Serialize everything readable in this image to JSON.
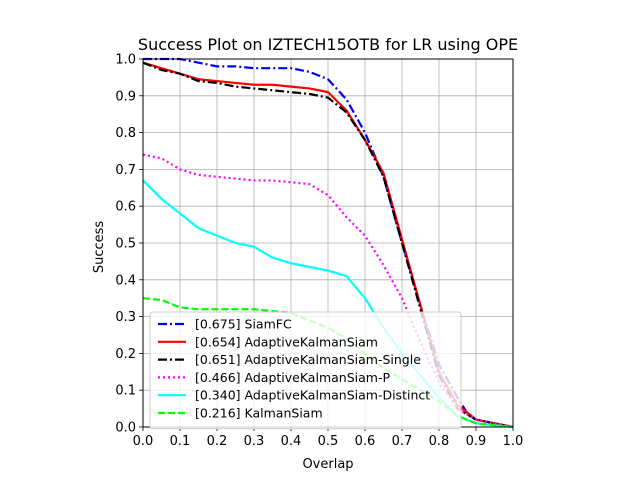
{
  "chart_data": {
    "type": "line",
    "title": "Success Plot on IZTECH15OTB for LR using OPE",
    "xlabel": "Overlap",
    "ylabel": "Success",
    "xlim": [
      0,
      1
    ],
    "ylim": [
      0,
      1
    ],
    "x_ticks": [
      "0.0",
      "0.1",
      "0.2",
      "0.3",
      "0.4",
      "0.5",
      "0.6",
      "0.7",
      "0.8",
      "0.9",
      "1.0"
    ],
    "y_ticks": [
      "0.0",
      "0.1",
      "0.2",
      "0.3",
      "0.4",
      "0.5",
      "0.6",
      "0.7",
      "0.8",
      "0.9",
      "1.0"
    ],
    "grid": true,
    "legend_position": "lower-left",
    "series": [
      {
        "name": "[0.675] SiamFC",
        "color": "#0000ff",
        "style": "dashdot",
        "x": [
          0.0,
          0.05,
          0.1,
          0.15,
          0.2,
          0.25,
          0.3,
          0.35,
          0.4,
          0.45,
          0.5,
          0.55,
          0.6,
          0.65,
          0.7,
          0.75,
          0.8,
          0.85,
          0.875,
          0.9,
          0.95,
          1.0
        ],
        "y": [
          1.0,
          1.0,
          1.0,
          0.99,
          0.98,
          0.98,
          0.975,
          0.975,
          0.975,
          0.965,
          0.945,
          0.89,
          0.8,
          0.68,
          0.5,
          0.33,
          0.17,
          0.08,
          0.04,
          0.02,
          0.01,
          0.0
        ]
      },
      {
        "name": "[0.654] AdaptiveKalmanSiam",
        "color": "#ff0000",
        "style": "solid",
        "x": [
          0.0,
          0.05,
          0.1,
          0.15,
          0.2,
          0.25,
          0.3,
          0.35,
          0.4,
          0.45,
          0.5,
          0.55,
          0.6,
          0.65,
          0.7,
          0.75,
          0.8,
          0.85,
          0.9,
          0.95,
          1.0
        ],
        "y": [
          0.99,
          0.975,
          0.96,
          0.945,
          0.94,
          0.935,
          0.93,
          0.93,
          0.925,
          0.92,
          0.91,
          0.86,
          0.78,
          0.69,
          0.51,
          0.33,
          0.15,
          0.06,
          0.02,
          0.01,
          0.0
        ]
      },
      {
        "name": "[0.651] AdaptiveKalmanSiam-Single",
        "color": "#000000",
        "style": "dashdot",
        "x": [
          0.0,
          0.05,
          0.1,
          0.15,
          0.2,
          0.25,
          0.3,
          0.35,
          0.4,
          0.45,
          0.5,
          0.55,
          0.6,
          0.65,
          0.7,
          0.75,
          0.8,
          0.85,
          0.9,
          0.95,
          1.0
        ],
        "y": [
          0.99,
          0.97,
          0.96,
          0.94,
          0.935,
          0.925,
          0.92,
          0.915,
          0.91,
          0.905,
          0.895,
          0.855,
          0.78,
          0.68,
          0.5,
          0.32,
          0.14,
          0.05,
          0.02,
          0.01,
          0.0
        ]
      },
      {
        "name": "[0.466] AdaptiveKalmanSiam-P",
        "color": "#ff00ff",
        "style": "dotted",
        "x": [
          0.0,
          0.05,
          0.1,
          0.15,
          0.2,
          0.25,
          0.3,
          0.35,
          0.4,
          0.45,
          0.5,
          0.55,
          0.6,
          0.65,
          0.7,
          0.75,
          0.8,
          0.85,
          0.9,
          0.95,
          1.0
        ],
        "y": [
          0.74,
          0.73,
          0.7,
          0.685,
          0.68,
          0.675,
          0.67,
          0.67,
          0.665,
          0.66,
          0.63,
          0.57,
          0.52,
          0.44,
          0.35,
          0.23,
          0.12,
          0.05,
          0.02,
          0.01,
          0.0
        ]
      },
      {
        "name": "[0.340] AdaptiveKalmanSiam-Distinct",
        "color": "#00ffff",
        "style": "solid",
        "x": [
          0.0,
          0.05,
          0.1,
          0.15,
          0.2,
          0.25,
          0.3,
          0.35,
          0.4,
          0.45,
          0.5,
          0.55,
          0.6,
          0.65,
          0.7,
          0.75,
          0.8,
          0.85,
          0.9,
          0.95,
          1.0
        ],
        "y": [
          0.67,
          0.62,
          0.58,
          0.54,
          0.52,
          0.5,
          0.49,
          0.46,
          0.445,
          0.435,
          0.425,
          0.41,
          0.35,
          0.27,
          0.2,
          0.14,
          0.08,
          0.03,
          0.01,
          0.005,
          0.0
        ]
      },
      {
        "name": "[0.216] KalmanSiam",
        "color": "#00ff00",
        "style": "dashed",
        "x": [
          0.0,
          0.05,
          0.1,
          0.15,
          0.2,
          0.25,
          0.3,
          0.35,
          0.4,
          0.45,
          0.5,
          0.55,
          0.6,
          0.65,
          0.7,
          0.75,
          0.8,
          0.85,
          0.9,
          0.95,
          1.0
        ],
        "y": [
          0.35,
          0.345,
          0.325,
          0.32,
          0.32,
          0.32,
          0.32,
          0.315,
          0.31,
          0.29,
          0.27,
          0.24,
          0.2,
          0.16,
          0.13,
          0.1,
          0.07,
          0.03,
          0.01,
          0.005,
          0.0
        ]
      }
    ]
  }
}
